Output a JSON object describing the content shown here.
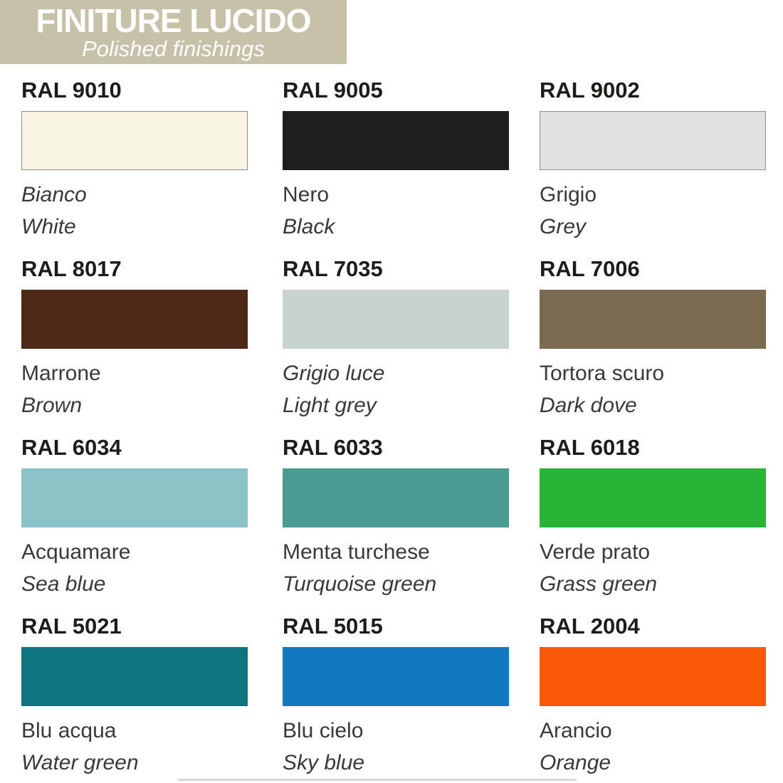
{
  "header": {
    "title": "FINITURE LUCIDO",
    "subtitle": "Polished finishings",
    "bg_color": "#C7C1AA",
    "text_color": "#FFFFFF"
  },
  "swatches": [
    {
      "ral": "RAL 9010",
      "name_it": "Bianco",
      "name_en": "White",
      "color": "#F8F4E4",
      "border": true,
      "it_italic": true
    },
    {
      "ral": "RAL 9005",
      "name_it": "Nero",
      "name_en": "Black",
      "color": "#1F1E1C",
      "border": false,
      "it_italic": false
    },
    {
      "ral": "RAL 9002",
      "name_it": "Grigio",
      "name_en": "Grey",
      "color": "#E2E3E0",
      "border": true,
      "it_italic": false
    },
    {
      "ral": "RAL 8017",
      "name_it": "Marrone",
      "name_en": "Brown",
      "color": "#4E2817",
      "border": false,
      "it_italic": false
    },
    {
      "ral": "RAL 7035",
      "name_it": "Grigio luce",
      "name_en": "Light grey",
      "color": "#C9D3CD",
      "border": false,
      "it_italic": true
    },
    {
      "ral": "RAL 7006",
      "name_it": "Tortora scuro",
      "name_en": "Dark dove",
      "color": "#7A6B50",
      "border": false,
      "it_italic": false
    },
    {
      "ral": "RAL 6034",
      "name_it": "Acquamare",
      "name_en": "Sea blue",
      "color": "#8CC3C6",
      "border": false,
      "it_italic": false
    },
    {
      "ral": "RAL 6033",
      "name_it": "Menta turchese",
      "name_en": "Turquoise green",
      "color": "#4A9C93",
      "border": false,
      "it_italic": false
    },
    {
      "ral": "RAL 6018",
      "name_it": "Verde prato",
      "name_en": "Grass green",
      "color": "#27B437",
      "border": false,
      "it_italic": false
    },
    {
      "ral": "RAL 5021",
      "name_it": "Blu acqua",
      "name_en": "Water green",
      "color": "#0E7580",
      "border": false,
      "it_italic": false
    },
    {
      "ral": "RAL 5015",
      "name_it": "Blu cielo",
      "name_en": "Sky blue",
      "color": "#1379BF",
      "border": false,
      "it_italic": false
    },
    {
      "ral": "RAL 2004",
      "name_it": "Arancio",
      "name_en": "Orange",
      "color": "#F95806",
      "border": false,
      "it_italic": false
    }
  ]
}
